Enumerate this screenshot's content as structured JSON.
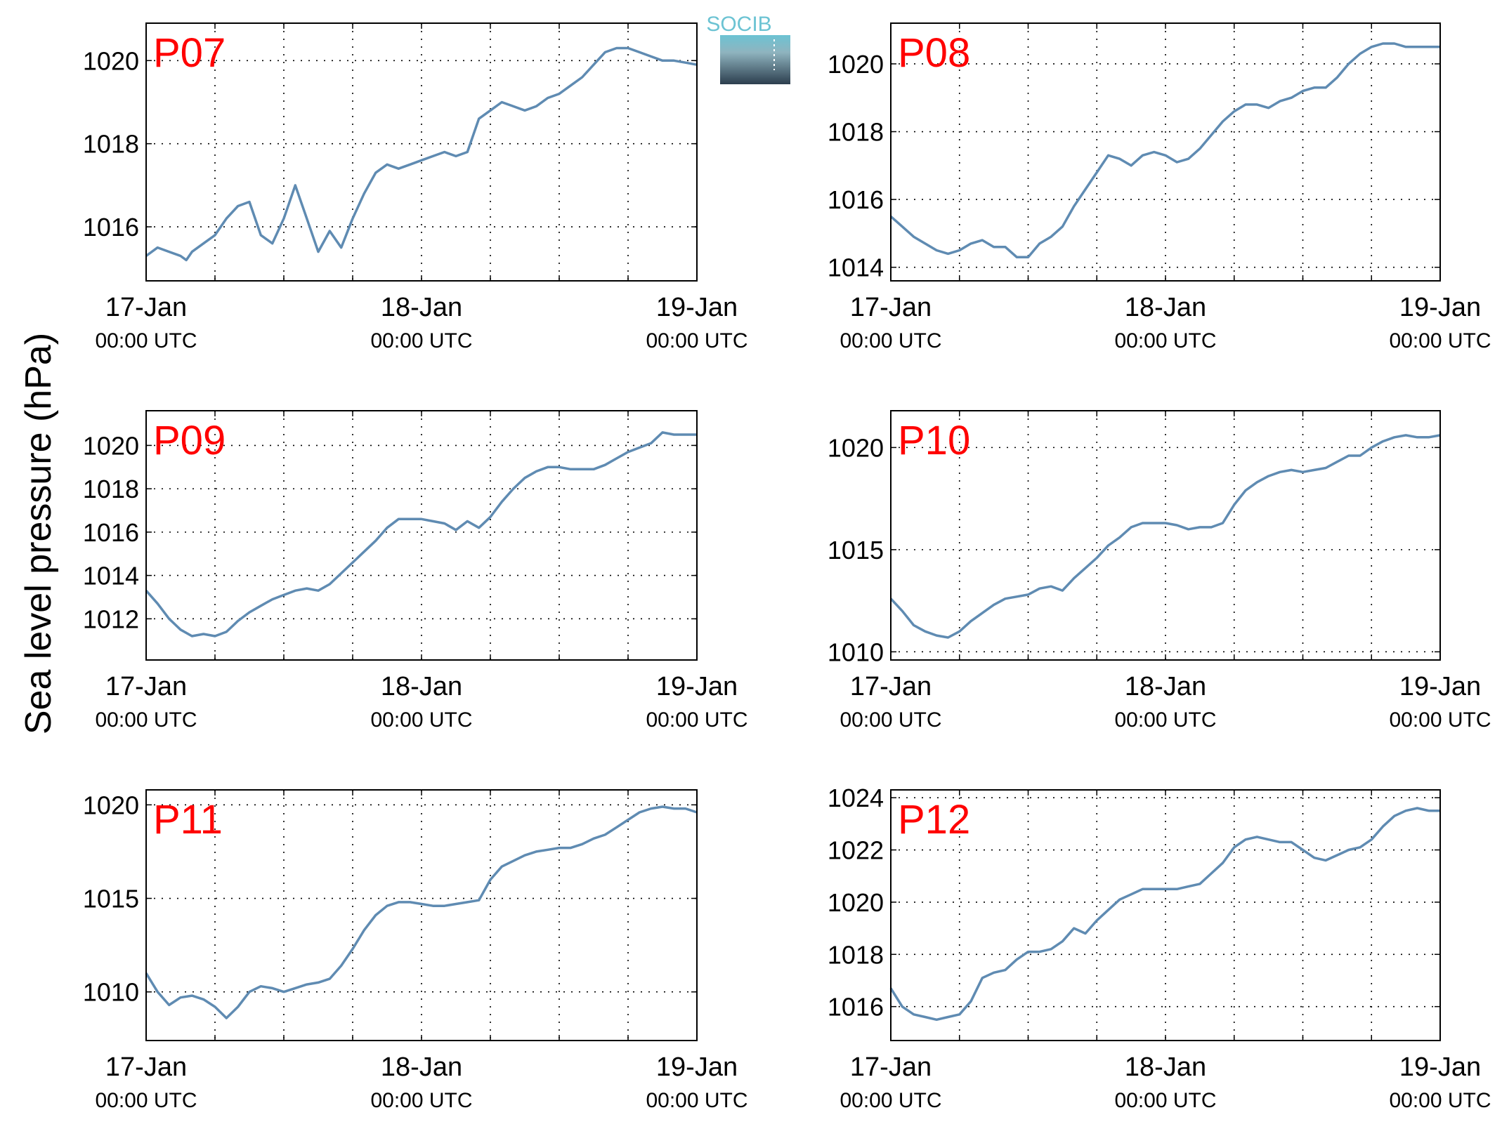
{
  "ylabel": "Sea level pressure (hPa)",
  "logo_text": "SOCIB",
  "colors": {
    "series": "#5f8bb2",
    "panel_label": "#ff0000",
    "grid": "#000000",
    "logo_top": "#6cc3d3",
    "logo_bottom": "#2c3e4e"
  },
  "chart_data": [
    {
      "type": "line",
      "panel_label": "P07",
      "x_ticks": [
        {
          "label": "17-Jan",
          "sub": "00:00 UTC"
        },
        {
          "label": "18-Jan",
          "sub": "00:00 UTC"
        },
        {
          "label": "19-Jan",
          "sub": "00:00 UTC"
        }
      ],
      "xlim": [
        0,
        48
      ],
      "ylim": [
        1014.7,
        1020.9
      ],
      "y_ticks": [
        1016,
        1018,
        1020
      ],
      "grid": true,
      "x": [
        0,
        1,
        2,
        3,
        3.5,
        4,
        5,
        6,
        7,
        8,
        9,
        10,
        11,
        12,
        13,
        14,
        15,
        16,
        17,
        18,
        19,
        20,
        21,
        22,
        23,
        24,
        25,
        26,
        27,
        28,
        29,
        30,
        31,
        32,
        33,
        34,
        35,
        36,
        37,
        38,
        39,
        40,
        41,
        42,
        43,
        44,
        45,
        46,
        47,
        48
      ],
      "y": [
        1015.3,
        1015.5,
        1015.4,
        1015.3,
        1015.2,
        1015.4,
        1015.6,
        1015.8,
        1016.2,
        1016.5,
        1016.6,
        1015.8,
        1015.6,
        1016.2,
        1017.0,
        1016.2,
        1015.4,
        1015.9,
        1015.5,
        1016.2,
        1016.8,
        1017.3,
        1017.5,
        1017.4,
        1017.5,
        1017.6,
        1017.7,
        1017.8,
        1017.7,
        1017.8,
        1018.6,
        1018.8,
        1019.0,
        1018.9,
        1018.8,
        1018.9,
        1019.1,
        1019.2,
        1019.4,
        1019.6,
        1019.9,
        1020.2,
        1020.3,
        1020.3,
        1020.2,
        1020.1,
        1020.0,
        1020.0,
        1019.95,
        1019.9
      ]
    },
    {
      "type": "line",
      "panel_label": "P08",
      "x_ticks": [
        {
          "label": "17-Jan",
          "sub": "00:00 UTC"
        },
        {
          "label": "18-Jan",
          "sub": "00:00 UTC"
        },
        {
          "label": "19-Jan",
          "sub": "00:00 UTC"
        }
      ],
      "xlim": [
        0,
        48
      ],
      "ylim": [
        1013.6,
        1021.2
      ],
      "y_ticks": [
        1014,
        1016,
        1018,
        1020
      ],
      "grid": true,
      "x": [
        0,
        1,
        2,
        3,
        4,
        5,
        6,
        7,
        8,
        9,
        10,
        11,
        12,
        13,
        14,
        15,
        16,
        17,
        18,
        19,
        20,
        21,
        22,
        23,
        24,
        25,
        26,
        27,
        28,
        29,
        30,
        31,
        32,
        33,
        34,
        35,
        36,
        37,
        38,
        39,
        40,
        41,
        42,
        43,
        44,
        45,
        46,
        47,
        48
      ],
      "y": [
        1015.5,
        1015.2,
        1014.9,
        1014.7,
        1014.5,
        1014.4,
        1014.5,
        1014.7,
        1014.8,
        1014.6,
        1014.6,
        1014.3,
        1014.3,
        1014.7,
        1014.9,
        1015.2,
        1015.8,
        1016.3,
        1016.8,
        1017.3,
        1017.2,
        1017.0,
        1017.3,
        1017.4,
        1017.3,
        1017.1,
        1017.2,
        1017.5,
        1017.9,
        1018.3,
        1018.6,
        1018.8,
        1018.8,
        1018.7,
        1018.9,
        1019.0,
        1019.2,
        1019.3,
        1019.3,
        1019.6,
        1020.0,
        1020.3,
        1020.5,
        1020.6,
        1020.6,
        1020.5,
        1020.5,
        1020.5,
        1020.5
      ]
    },
    {
      "type": "line",
      "panel_label": "P09",
      "x_ticks": [
        {
          "label": "17-Jan",
          "sub": "00:00 UTC"
        },
        {
          "label": "18-Jan",
          "sub": "00:00 UTC"
        },
        {
          "label": "19-Jan",
          "sub": "00:00 UTC"
        }
      ],
      "xlim": [
        0,
        48
      ],
      "ylim": [
        1010.1,
        1021.6
      ],
      "y_ticks": [
        1012,
        1014,
        1016,
        1018,
        1020
      ],
      "grid": true,
      "x": [
        0,
        1,
        2,
        3,
        4,
        5,
        6,
        7,
        8,
        9,
        10,
        11,
        12,
        13,
        14,
        15,
        16,
        17,
        18,
        19,
        20,
        21,
        22,
        23,
        24,
        25,
        26,
        27,
        28,
        29,
        30,
        31,
        32,
        33,
        34,
        35,
        36,
        37,
        38,
        39,
        40,
        41,
        42,
        43,
        44,
        45,
        46,
        47,
        48
      ],
      "y": [
        1013.3,
        1012.7,
        1012.0,
        1011.5,
        1011.2,
        1011.3,
        1011.2,
        1011.4,
        1011.9,
        1012.3,
        1012.6,
        1012.9,
        1013.1,
        1013.3,
        1013.4,
        1013.3,
        1013.6,
        1014.1,
        1014.6,
        1015.1,
        1015.6,
        1016.2,
        1016.6,
        1016.6,
        1016.6,
        1016.5,
        1016.4,
        1016.1,
        1016.5,
        1016.2,
        1016.7,
        1017.4,
        1018.0,
        1018.5,
        1018.8,
        1019.0,
        1019.0,
        1018.9,
        1018.9,
        1018.9,
        1019.1,
        1019.4,
        1019.7,
        1019.9,
        1020.1,
        1020.6,
        1020.5,
        1020.5,
        1020.5
      ]
    },
    {
      "type": "line",
      "panel_label": "P10",
      "x_ticks": [
        {
          "label": "17-Jan",
          "sub": "00:00 UTC"
        },
        {
          "label": "18-Jan",
          "sub": "00:00 UTC"
        },
        {
          "label": "19-Jan",
          "sub": "00:00 UTC"
        }
      ],
      "xlim": [
        0,
        48
      ],
      "ylim": [
        1009.6,
        1021.8
      ],
      "y_ticks": [
        1010,
        1015,
        1020
      ],
      "grid": true,
      "x": [
        0,
        1,
        2,
        3,
        4,
        5,
        6,
        7,
        8,
        9,
        10,
        11,
        12,
        13,
        14,
        15,
        16,
        17,
        18,
        19,
        20,
        21,
        22,
        23,
        24,
        25,
        26,
        27,
        28,
        29,
        30,
        31,
        32,
        33,
        34,
        35,
        36,
        37,
        38,
        39,
        40,
        41,
        42,
        43,
        44,
        45,
        46,
        47,
        48
      ],
      "y": [
        1012.6,
        1012.0,
        1011.3,
        1011.0,
        1010.8,
        1010.7,
        1011.0,
        1011.5,
        1011.9,
        1012.3,
        1012.6,
        1012.7,
        1012.8,
        1013.1,
        1013.2,
        1013.0,
        1013.6,
        1014.1,
        1014.6,
        1015.2,
        1015.6,
        1016.1,
        1016.3,
        1016.3,
        1016.3,
        1016.2,
        1016.0,
        1016.1,
        1016.1,
        1016.3,
        1017.2,
        1017.9,
        1018.3,
        1018.6,
        1018.8,
        1018.9,
        1018.8,
        1018.9,
        1019.0,
        1019.3,
        1019.6,
        1019.6,
        1020.0,
        1020.3,
        1020.5,
        1020.6,
        1020.5,
        1020.5,
        1020.6
      ]
    },
    {
      "type": "line",
      "panel_label": "P11",
      "x_ticks": [
        {
          "label": "17-Jan",
          "sub": "00:00 UTC"
        },
        {
          "label": "18-Jan",
          "sub": "00:00 UTC"
        },
        {
          "label": "19-Jan",
          "sub": "00:00 UTC"
        }
      ],
      "xlim": [
        0,
        48
      ],
      "ylim": [
        1007.4,
        1020.8
      ],
      "y_ticks": [
        1010,
        1015,
        1020
      ],
      "grid": true,
      "x": [
        0,
        1,
        2,
        3,
        4,
        5,
        6,
        7,
        8,
        9,
        10,
        11,
        12,
        13,
        14,
        15,
        16,
        17,
        18,
        19,
        20,
        21,
        22,
        23,
        24,
        25,
        26,
        27,
        28,
        29,
        30,
        31,
        32,
        33,
        34,
        35,
        36,
        37,
        38,
        39,
        40,
        41,
        42,
        43,
        44,
        45,
        46,
        47,
        48
      ],
      "y": [
        1011.0,
        1010.0,
        1009.3,
        1009.7,
        1009.8,
        1009.6,
        1009.2,
        1008.6,
        1009.2,
        1010.0,
        1010.3,
        1010.2,
        1010.0,
        1010.2,
        1010.4,
        1010.5,
        1010.7,
        1011.4,
        1012.3,
        1013.3,
        1014.1,
        1014.6,
        1014.8,
        1014.8,
        1014.7,
        1014.6,
        1014.6,
        1014.7,
        1014.8,
        1014.9,
        1016.0,
        1016.7,
        1017.0,
        1017.3,
        1017.5,
        1017.6,
        1017.7,
        1017.7,
        1017.9,
        1018.2,
        1018.4,
        1018.8,
        1019.2,
        1019.6,
        1019.8,
        1019.9,
        1019.8,
        1019.8,
        1019.6
      ]
    },
    {
      "type": "line",
      "panel_label": "P12",
      "x_ticks": [
        {
          "label": "17-Jan",
          "sub": "00:00 UTC"
        },
        {
          "label": "18-Jan",
          "sub": "00:00 UTC"
        },
        {
          "label": "19-Jan",
          "sub": "00:00 UTC"
        }
      ],
      "xlim": [
        0,
        48
      ],
      "ylim": [
        1014.7,
        1024.3
      ],
      "y_ticks": [
        1016,
        1018,
        1020,
        1022,
        1024
      ],
      "grid": true,
      "x": [
        0,
        1,
        2,
        3,
        4,
        5,
        6,
        7,
        8,
        9,
        10,
        11,
        12,
        13,
        14,
        15,
        16,
        17,
        18,
        19,
        20,
        21,
        22,
        23,
        24,
        25,
        26,
        27,
        28,
        29,
        30,
        31,
        32,
        33,
        34,
        35,
        36,
        37,
        38,
        39,
        40,
        41,
        42,
        43,
        44,
        45,
        46,
        47,
        48
      ],
      "y": [
        1016.7,
        1016.0,
        1015.7,
        1015.6,
        1015.5,
        1015.6,
        1015.7,
        1016.2,
        1017.1,
        1017.3,
        1017.4,
        1017.8,
        1018.1,
        1018.1,
        1018.2,
        1018.5,
        1019.0,
        1018.8,
        1019.3,
        1019.7,
        1020.1,
        1020.3,
        1020.5,
        1020.5,
        1020.5,
        1020.5,
        1020.6,
        1020.7,
        1021.1,
        1021.5,
        1022.1,
        1022.4,
        1022.5,
        1022.4,
        1022.3,
        1022.3,
        1022.0,
        1021.7,
        1021.6,
        1021.8,
        1022.0,
        1022.1,
        1022.4,
        1022.9,
        1023.3,
        1023.5,
        1023.6,
        1023.5,
        1023.5
      ]
    }
  ]
}
